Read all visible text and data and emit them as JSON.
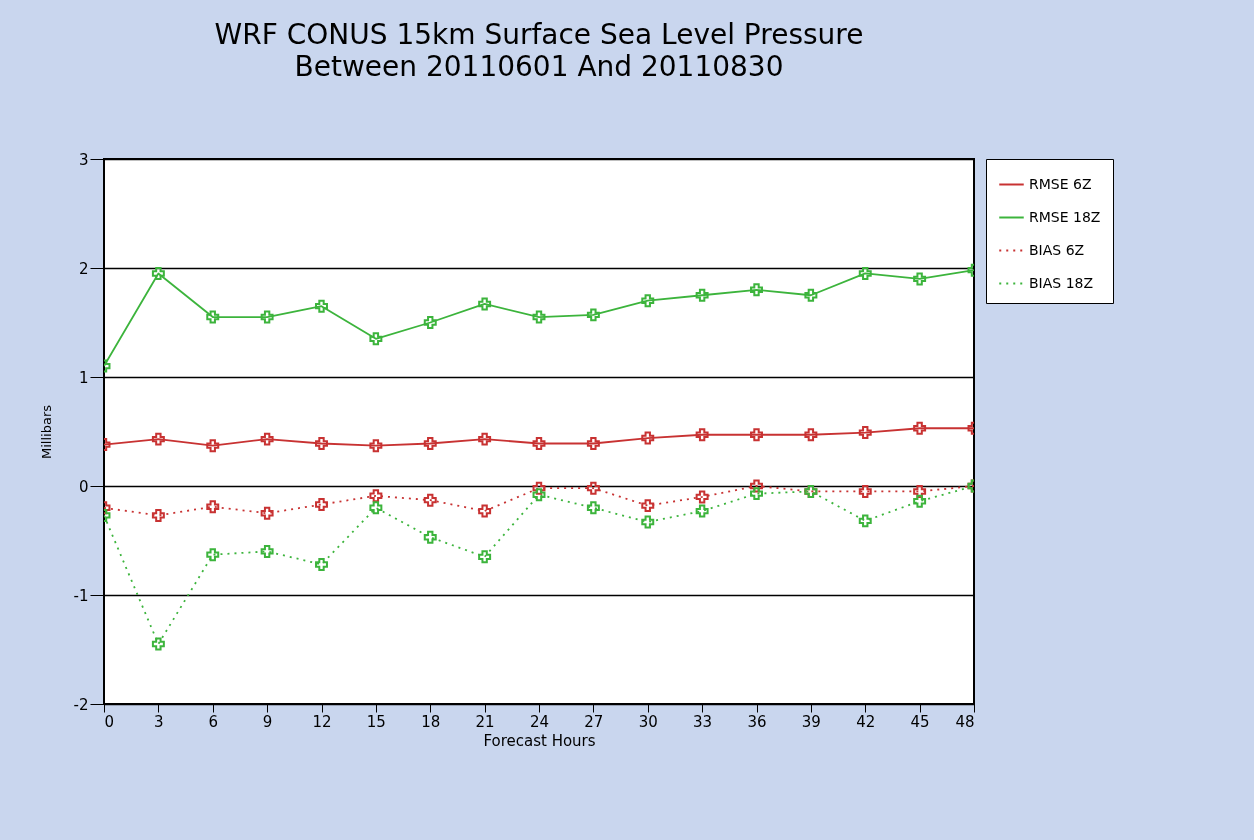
{
  "chart_data": {
    "type": "line",
    "title": "WRF CONUS 15km Surface Sea Level Pressure",
    "subtitle": "Between 20110601 And 20110830",
    "xlabel": "Forecast Hours",
    "ylabel": "Millibars",
    "x": [
      0,
      3,
      6,
      9,
      12,
      15,
      18,
      21,
      24,
      27,
      30,
      33,
      36,
      39,
      42,
      45,
      48
    ],
    "series": [
      {
        "name": "RMSE 6Z",
        "color": "#c83232",
        "line_style": "solid",
        "values": [
          0.38,
          0.43,
          0.37,
          0.43,
          0.39,
          0.37,
          0.39,
          0.43,
          0.39,
          0.39,
          0.44,
          0.47,
          0.47,
          0.47,
          0.49,
          0.53,
          0.53
        ]
      },
      {
        "name": "RMSE 18Z",
        "color": "#3cb43c",
        "line_style": "solid",
        "values": [
          1.1,
          1.95,
          1.55,
          1.55,
          1.65,
          1.35,
          1.5,
          1.67,
          1.55,
          1.57,
          1.7,
          1.75,
          1.8,
          1.75,
          1.95,
          1.9,
          1.98
        ]
      },
      {
        "name": "BIAS 6Z",
        "color": "#c83232",
        "line_style": "dotted",
        "values": [
          -0.2,
          -0.27,
          -0.19,
          -0.25,
          -0.17,
          -0.09,
          -0.13,
          -0.23,
          -0.02,
          -0.02,
          -0.18,
          -0.1,
          0,
          -0.05,
          -0.05,
          -0.05,
          0
        ]
      },
      {
        "name": "BIAS 18Z",
        "color": "#3cb43c",
        "line_style": "dotted",
        "values": [
          -0.27,
          -1.45,
          -0.63,
          -0.6,
          -0.72,
          -0.2,
          -0.47,
          -0.65,
          -0.08,
          -0.2,
          -0.33,
          -0.23,
          -0.07,
          -0.05,
          -0.32,
          -0.14,
          0
        ]
      }
    ],
    "xlim": [
      0,
      48
    ],
    "xticks": [
      0,
      3,
      6,
      9,
      12,
      15,
      18,
      21,
      24,
      27,
      30,
      33,
      36,
      39,
      42,
      45,
      48
    ],
    "ylim": [
      -2,
      3
    ],
    "yticks": [
      -2,
      -1,
      0,
      1,
      2,
      3
    ],
    "grid": "y",
    "legend": "top right",
    "marker": "cross"
  }
}
